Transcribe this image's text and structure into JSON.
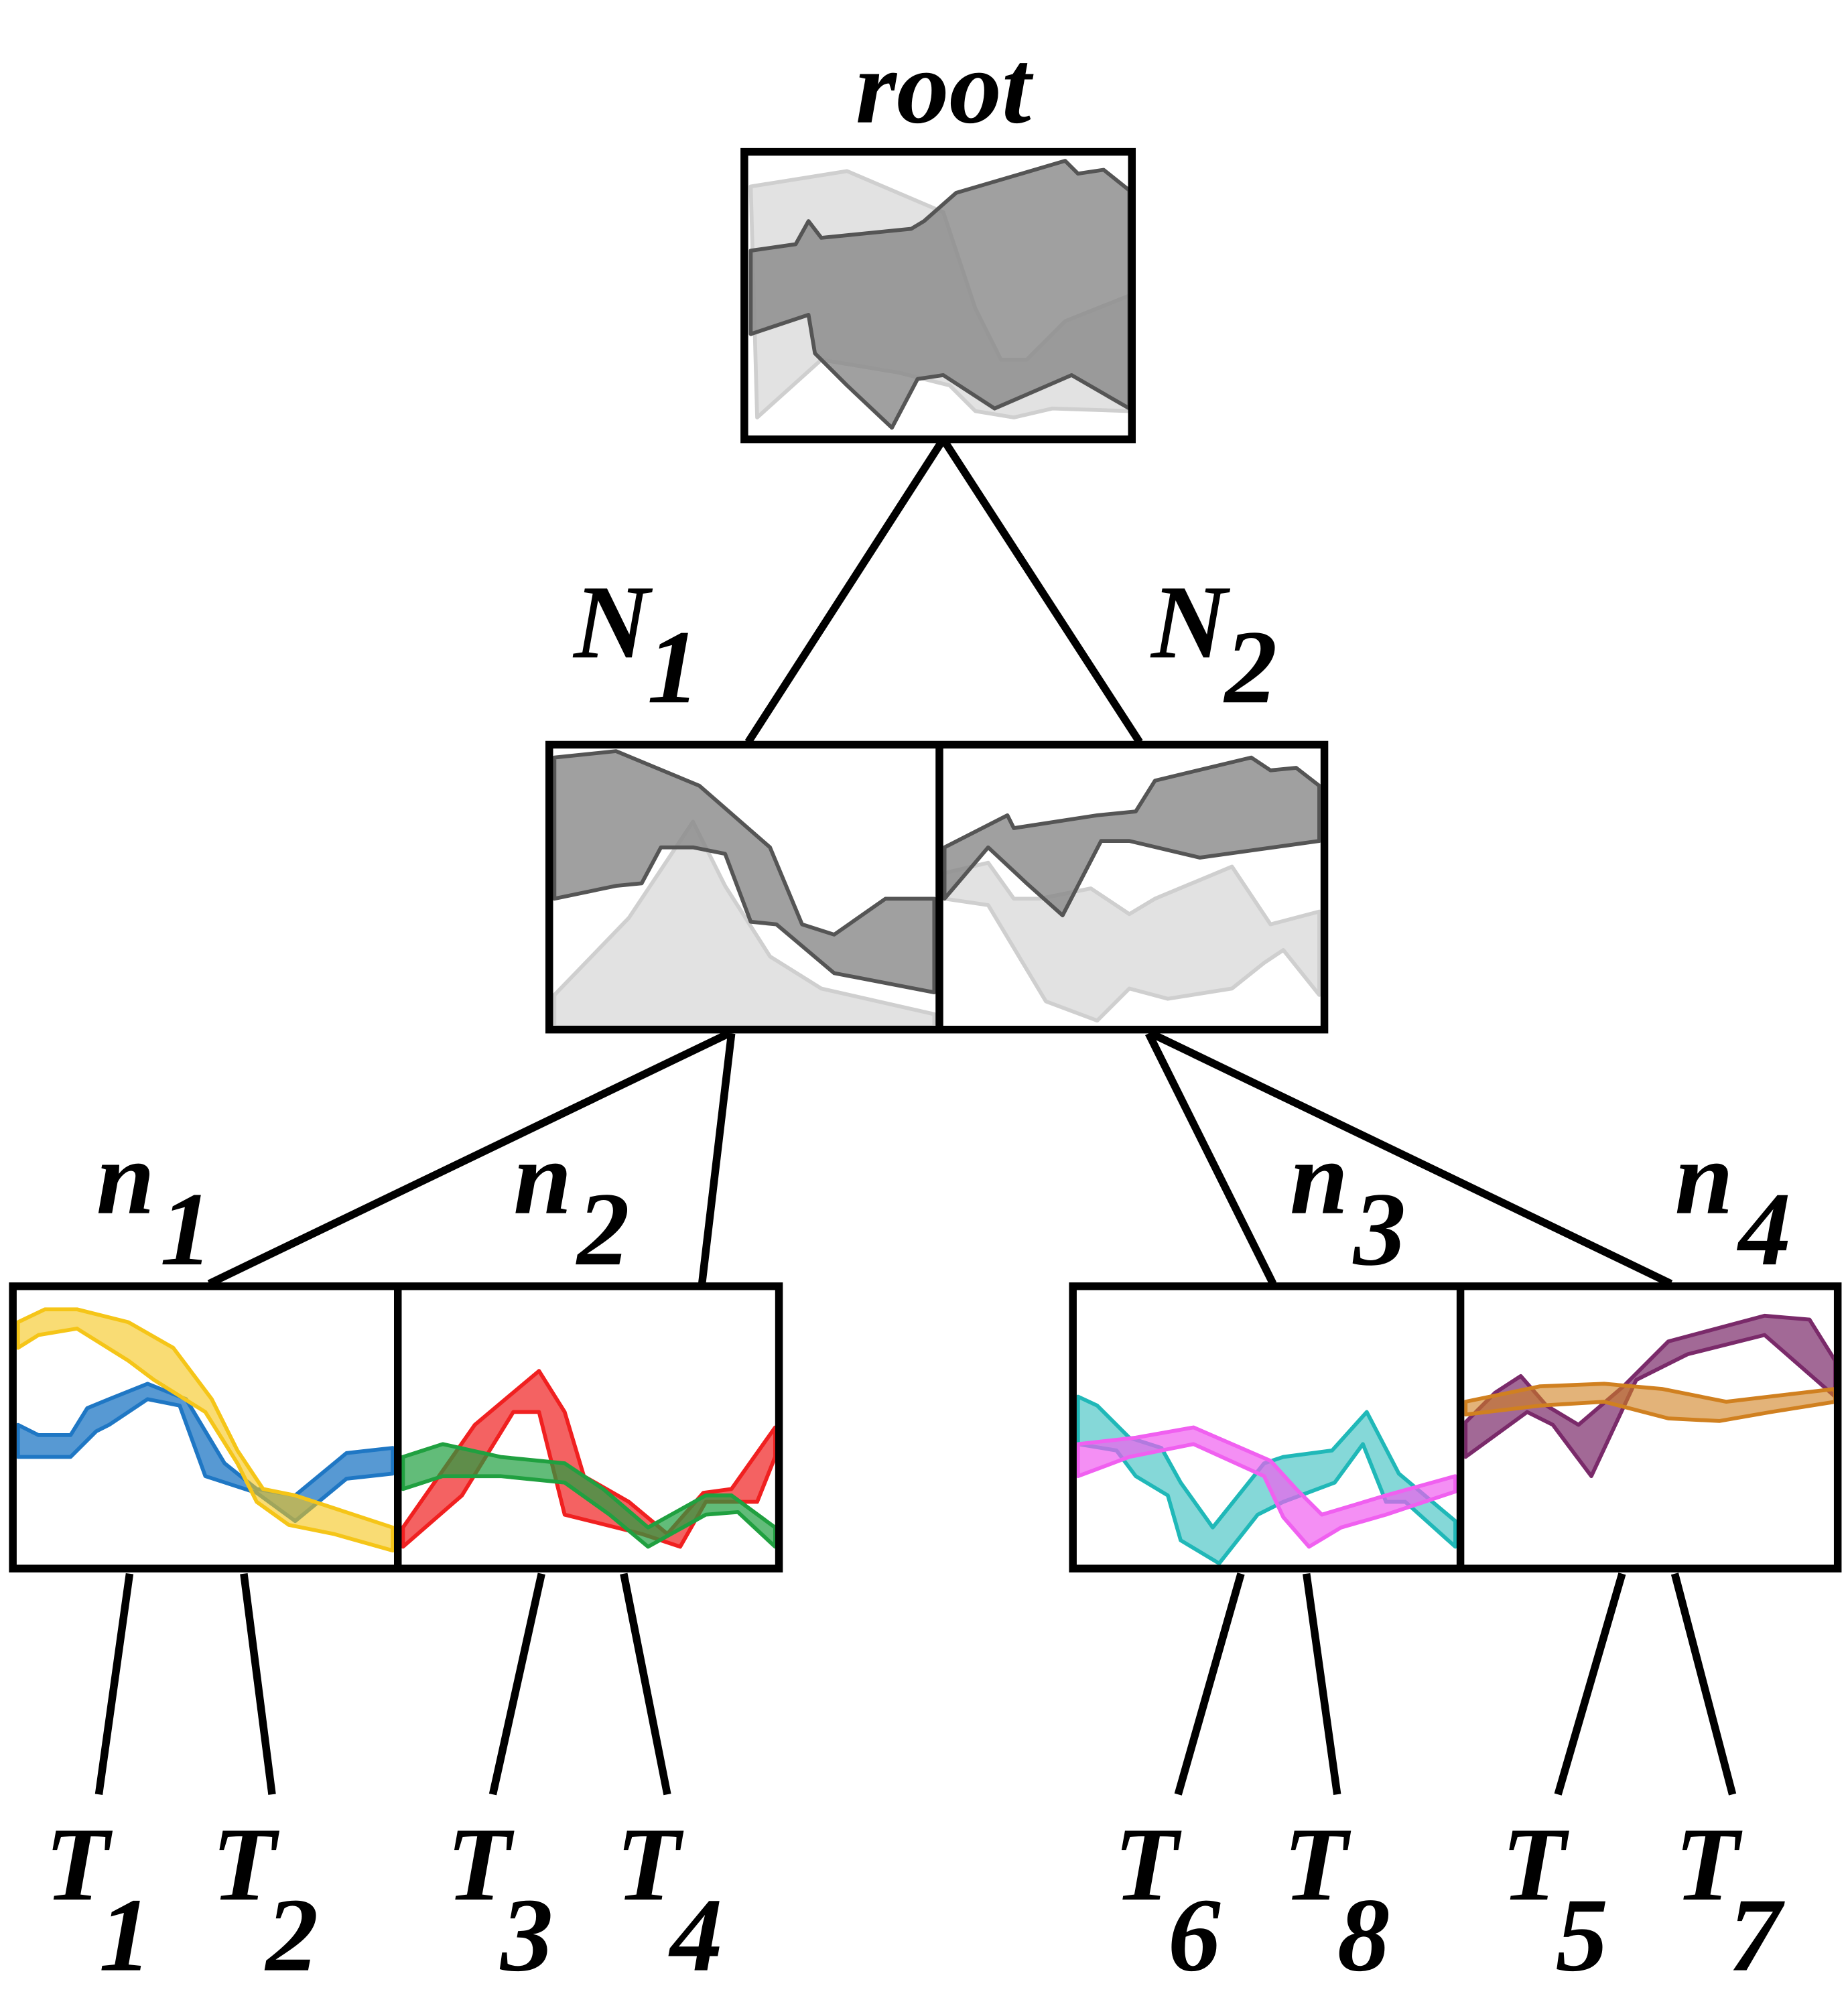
{
  "root": {
    "label": "root"
  },
  "level1": [
    {
      "label": "N",
      "subscript": "1"
    },
    {
      "label": "N",
      "subscript": "2"
    }
  ],
  "level2": [
    {
      "label": "n",
      "subscript": "1"
    },
    {
      "label": "n",
      "subscript": "2"
    },
    {
      "label": "n",
      "subscript": "3"
    },
    {
      "label": "n",
      "subscript": "4"
    }
  ],
  "leaves": [
    {
      "label": "T",
      "subscript": "1"
    },
    {
      "label": "T",
      "subscript": "2"
    },
    {
      "label": "T",
      "subscript": "3"
    },
    {
      "label": "T",
      "subscript": "4"
    },
    {
      "label": "T",
      "subscript": "6"
    },
    {
      "label": "T",
      "subscript": "8"
    },
    {
      "label": "T",
      "subscript": "5"
    },
    {
      "label": "T",
      "subscript": "7"
    }
  ]
}
